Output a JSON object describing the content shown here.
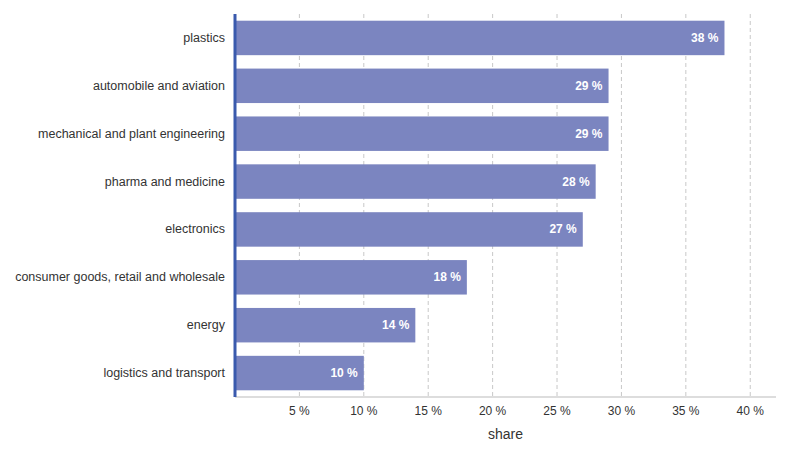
{
  "chart_data": {
    "type": "bar",
    "orientation": "horizontal",
    "categories": [
      "logistics and transport",
      "energy",
      "consumer goods, retail and wholesale",
      "electronics",
      "pharma and medicine",
      "mechanical and plant engineering",
      "automobile and aviation",
      "plastics"
    ],
    "values": [
      10,
      14,
      18,
      27,
      28,
      29,
      29,
      38
    ],
    "value_labels": [
      "10 %",
      "14 %",
      "18 %",
      "27 %",
      "28 %",
      "29 %",
      "29 %",
      "38 %"
    ],
    "data_labels": true,
    "color": "#7b85c0",
    "xlabel": "share",
    "xlim": [
      0,
      42
    ],
    "xticks": [
      {
        "value": 5,
        "label": "5 %"
      },
      {
        "value": 10,
        "label": "10 %"
      },
      {
        "value": 15,
        "label": "15 %"
      },
      {
        "value": 20,
        "label": "20 %"
      },
      {
        "value": 25,
        "label": "25 %"
      },
      {
        "value": 30,
        "label": "30 %"
      },
      {
        "value": 35,
        "label": "35 %"
      },
      {
        "value": 40,
        "label": "40 %"
      }
    ],
    "grid": true
  }
}
